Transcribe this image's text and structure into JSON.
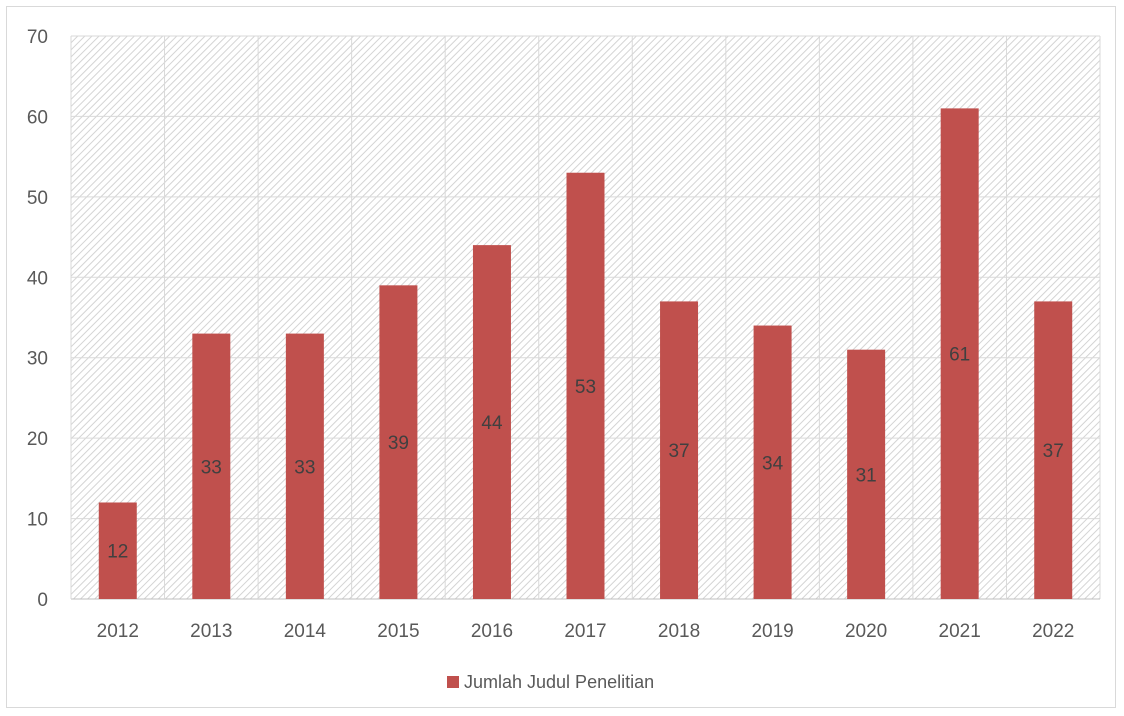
{
  "chart_data": {
    "type": "bar",
    "categories": [
      "2012",
      "2013",
      "2014",
      "2015",
      "2016",
      "2017",
      "2018",
      "2019",
      "2020",
      "2021",
      "2022"
    ],
    "series": [
      {
        "name": "Jumlah Judul Penelitian",
        "values": [
          12,
          33,
          33,
          39,
          44,
          53,
          37,
          34,
          31,
          61,
          37
        ],
        "color": "#c0504d"
      }
    ],
    "title": "",
    "xlabel": "",
    "ylabel": "",
    "ylim": [
      0,
      70
    ],
    "yticks": [
      "0",
      "10",
      "20",
      "30",
      "40",
      "50",
      "60",
      "70"
    ],
    "grid": true,
    "legend_position": "bottom",
    "plot_background": "hatched-light-gray",
    "data_label_color": "#404040"
  }
}
